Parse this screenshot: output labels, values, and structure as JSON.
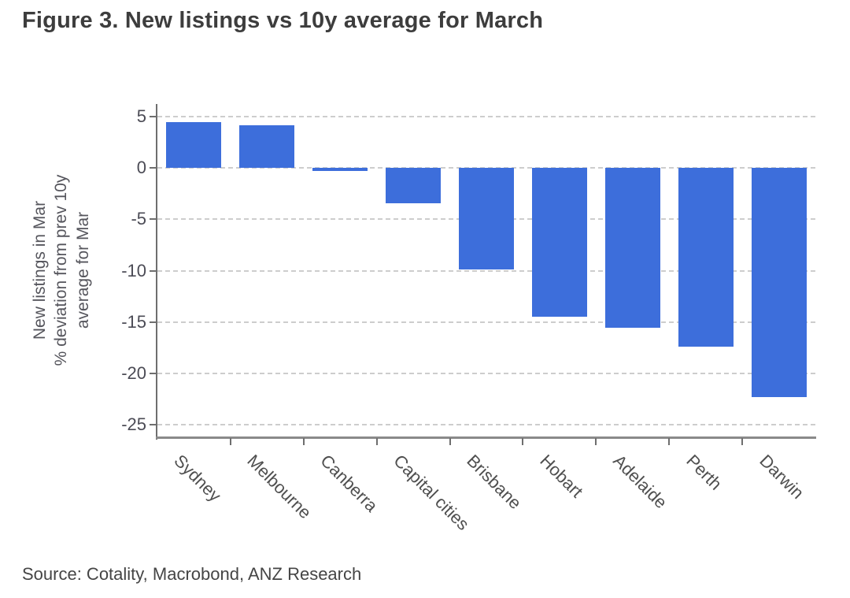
{
  "figure": {
    "title": "Figure 3. New listings vs 10y average for March",
    "source": "Source:  Cotality, Macrobond, ANZ Research"
  },
  "chart_data": {
    "type": "bar",
    "title": "Figure 3. New listings vs 10y average for March",
    "categories": [
      "Sydney",
      "Melbourne",
      "Canberra",
      "Capital cities",
      "Brisbane",
      "Hobart",
      "Adelaide",
      "Perth",
      "Darwin"
    ],
    "values": [
      4.5,
      4.2,
      -0.3,
      -3.4,
      -9.9,
      -14.5,
      -15.6,
      -17.4,
      -22.3
    ],
    "xlabel": "",
    "ylabel": "New listings in Mar % deviation from prev 10y average for Mar",
    "ylabel_lines": [
      "New listings in Mar",
      "% deviation from prev 10y",
      "average for Mar"
    ],
    "yticks": [
      5,
      0,
      -5,
      -10,
      -15,
      -20,
      -25
    ],
    "ylim": [
      -26.25,
      6.25
    ],
    "bar_color": "#3d6edb",
    "grid": "horizontal-dashed",
    "legend": "none",
    "x_tick_rotation": 45,
    "source": "Source:  Cotality, Macrobond, ANZ Research"
  }
}
